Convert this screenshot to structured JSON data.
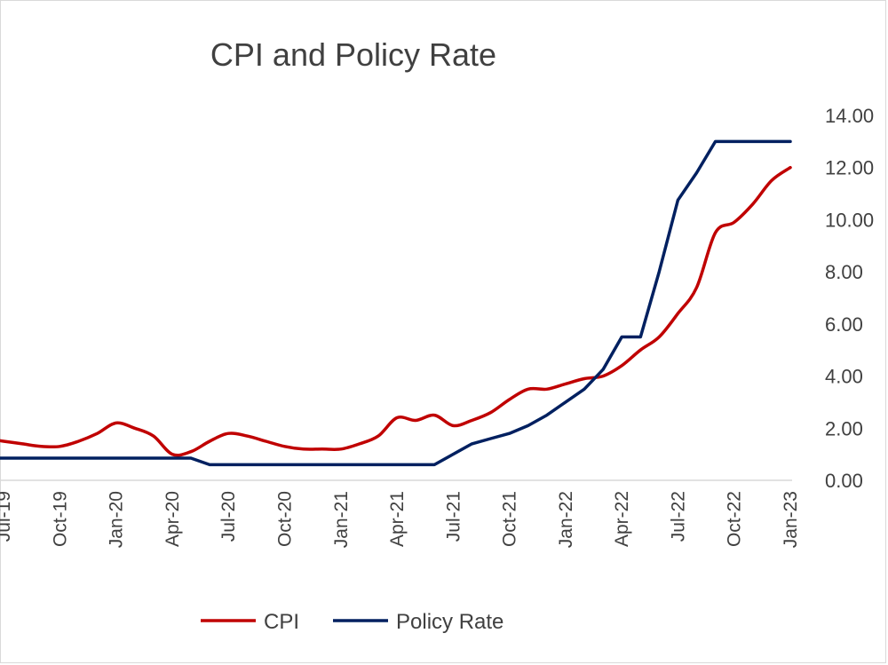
{
  "chart_data": {
    "type": "line",
    "title": "CPI and Policy Rate",
    "xlabel": "",
    "ylabel": "",
    "ylim": [
      0,
      14
    ],
    "y_ticks": [
      "0.00",
      "2.00",
      "4.00",
      "6.00",
      "8.00",
      "10.00",
      "12.00",
      "14.00"
    ],
    "x_tick_labels": [
      "Jul-19",
      "Oct-19",
      "Jan-20",
      "Apr-20",
      "Jul-20",
      "Oct-20",
      "Jan-21",
      "Apr-21",
      "Jul-21",
      "Oct-21",
      "Jan-22",
      "Apr-22",
      "Jul-22",
      "Oct-22",
      "Jan-23"
    ],
    "x": [
      "Jun-19",
      "Jul-19",
      "Aug-19",
      "Sep-19",
      "Oct-19",
      "Nov-19",
      "Dec-19",
      "Jan-20",
      "Feb-20",
      "Mar-20",
      "Apr-20",
      "May-20",
      "Jun-20",
      "Jul-20",
      "Aug-20",
      "Sep-20",
      "Oct-20",
      "Nov-20",
      "Dec-20",
      "Jan-21",
      "Feb-21",
      "Mar-21",
      "Apr-21",
      "May-21",
      "Jun-21",
      "Jul-21",
      "Aug-21",
      "Sep-21",
      "Oct-21",
      "Nov-21",
      "Dec-21",
      "Jan-22",
      "Feb-22",
      "Mar-22",
      "Apr-22",
      "May-22",
      "Jun-22",
      "Jul-22",
      "Aug-22",
      "Sep-22",
      "Oct-22",
      "Nov-22",
      "Dec-22",
      "Jan-23"
    ],
    "series": [
      {
        "name": "CPI",
        "color": "#c00000",
        "values": [
          1.6,
          1.5,
          1.4,
          1.3,
          1.3,
          1.5,
          1.8,
          2.2,
          2.0,
          1.7,
          1.0,
          1.1,
          1.5,
          1.8,
          1.7,
          1.5,
          1.3,
          1.2,
          1.2,
          1.2,
          1.4,
          1.7,
          2.4,
          2.3,
          2.5,
          2.1,
          2.3,
          2.6,
          3.1,
          3.5,
          3.5,
          3.7,
          3.9,
          4.0,
          4.4,
          5.0,
          5.5,
          6.4,
          7.4,
          9.5,
          9.9,
          10.6,
          11.5,
          12.0
        ]
      },
      {
        "name": "Policy Rate",
        "color": "#002060",
        "values": [
          0.85,
          0.85,
          0.85,
          0.85,
          0.85,
          0.85,
          0.85,
          0.85,
          0.85,
          0.85,
          0.85,
          0.85,
          0.6,
          0.6,
          0.6,
          0.6,
          0.6,
          0.6,
          0.6,
          0.6,
          0.6,
          0.6,
          0.6,
          0.6,
          0.6,
          1.0,
          1.4,
          1.6,
          1.8,
          2.1,
          2.5,
          3.0,
          3.5,
          4.25,
          5.5,
          5.5,
          8.0,
          10.75,
          11.8,
          13.0,
          13.0,
          13.0,
          13.0,
          13.0
        ]
      }
    ],
    "legend_position": "bottom",
    "grid": false
  }
}
